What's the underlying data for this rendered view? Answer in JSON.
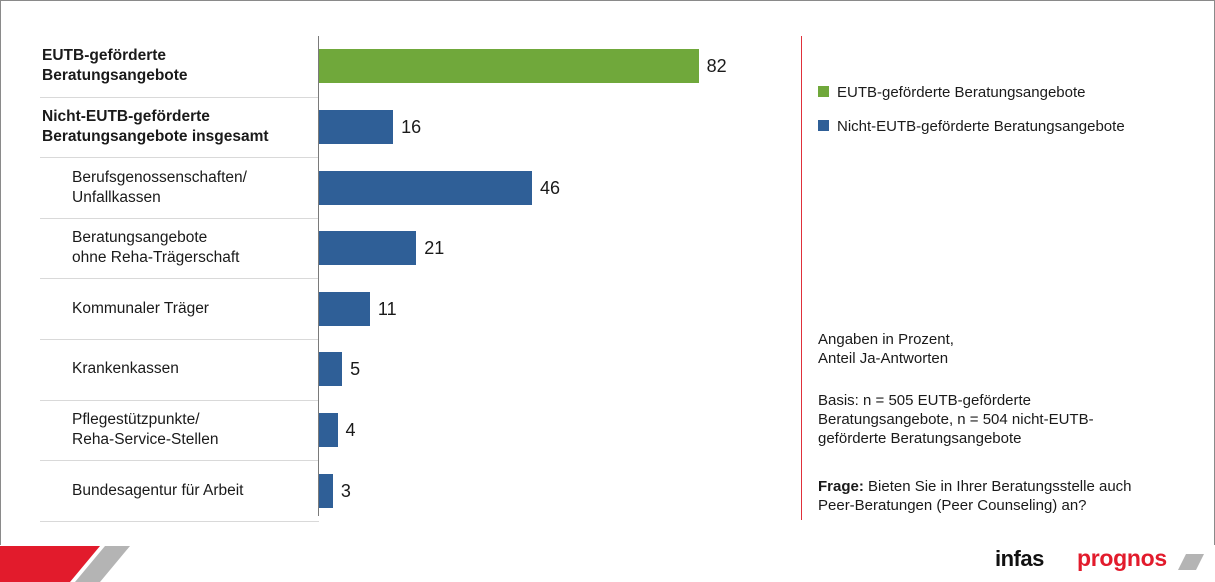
{
  "chart_data": {
    "type": "bar",
    "orientation": "horizontal",
    "categories": [
      "EUTB-geförderte Beratungsangebote",
      "Nicht-EUTB-geförderte Beratungsangebote insgesamt",
      "Berufsgenossenschaften/ Unfallkassen",
      "Beratungsangebote ohne Reha-Trägerschaft",
      "Kommunaler Träger",
      "Krankenkassen",
      "Pflegestützpunkte/ Reha-Service-Stellen",
      "Bundesagentur für Arbeit"
    ],
    "rows": [
      {
        "lines": [
          "EUTB-geförderte",
          "Beratungsangebote"
        ],
        "style": "main",
        "value": 82,
        "series": "EUTB-geförderte Beratungsangebote"
      },
      {
        "lines": [
          "Nicht-EUTB-geförderte",
          "Beratungsangebote insgesamt"
        ],
        "style": "main",
        "value": 16,
        "series": "Nicht-EUTB-geförderte Beratungsangebote"
      },
      {
        "lines": [
          "Berufsgenossenschaften/",
          "Unfallkassen"
        ],
        "style": "sub",
        "value": 46,
        "series": "Nicht-EUTB-geförderte Beratungsangebote"
      },
      {
        "lines": [
          "Beratungsangebote",
          "ohne Reha-Trägerschaft"
        ],
        "style": "sub",
        "value": 21,
        "series": "Nicht-EUTB-geförderte Beratungsangebote"
      },
      {
        "lines": [
          "Kommunaler Träger"
        ],
        "style": "sub",
        "value": 11,
        "series": "Nicht-EUTB-geförderte Beratungsangebote"
      },
      {
        "lines": [
          "Krankenkassen"
        ],
        "style": "sub",
        "value": 5,
        "series": "Nicht-EUTB-geförderte Beratungsangebote"
      },
      {
        "lines": [
          "Pflegestützpunkte/",
          "Reha-Service-Stellen"
        ],
        "style": "sub",
        "value": 4,
        "series": "Nicht-EUTB-geförderte Beratungsangebote"
      },
      {
        "lines": [
          "Bundesagentur für Arbeit"
        ],
        "style": "sub",
        "value": 3,
        "series": "Nicht-EUTB-geförderte Beratungsangebote"
      }
    ],
    "values": [
      82,
      16,
      46,
      21,
      11,
      5,
      4,
      3
    ],
    "series": [
      {
        "name": "EUTB-geförderte Beratungsangebote",
        "color": "#70a83b"
      },
      {
        "name": "Nicht-EUTB-geförderte Beratungsangebote",
        "color": "#2f5f97"
      }
    ],
    "xlim": [
      0,
      100
    ],
    "grid": false,
    "legend_position": "right"
  },
  "legend": {
    "item1": "EUTB-geförderte Beratungsangebote",
    "item2": "Nicht-EUTB-geförderte Beratungsangebote"
  },
  "notes": {
    "units_line1": "Angaben in Prozent,",
    "units_line2": "Anteil Ja-Antworten",
    "basis_line1": "Basis: n = 505 EUTB-geförderte",
    "basis_line2": "Beratungsangebote, n = 504 nicht-EUTB-",
    "basis_line3": "geförderte Beratungsangebote",
    "question_label": "Frage:",
    "question_line1": " Bieten Sie in Ihrer Beratungsstelle auch",
    "question_line2": "Peer-Beratungen (Peer Counseling) an?"
  },
  "footer": {
    "logo_infas": "infas",
    "logo_prognos": "prognos"
  },
  "colors": {
    "green": "#70a83b",
    "blue": "#2f5f97",
    "red_accent": "#e21b2c",
    "grey_accent": "#b4b4b4"
  }
}
